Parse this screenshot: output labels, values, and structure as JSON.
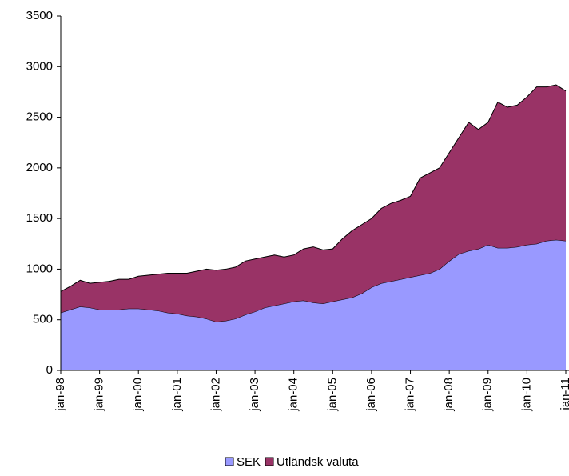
{
  "chart_data": {
    "type": "stacked_area",
    "categories": [
      "jan-98",
      null,
      null,
      null,
      "jan-99",
      null,
      null,
      null,
      "jan-00",
      null,
      null,
      null,
      "jan-01",
      null,
      null,
      null,
      "jan-02",
      null,
      null,
      null,
      "jan-03",
      null,
      null,
      null,
      "jan-04",
      null,
      null,
      null,
      "jan-05",
      null,
      null,
      null,
      "jan-06",
      null,
      null,
      null,
      "jan-07",
      null,
      null,
      null,
      "jan-08",
      null,
      null,
      null,
      "jan-09",
      null,
      null,
      null,
      "jan-10",
      null,
      null,
      null,
      "jan-11"
    ],
    "series": [
      {
        "name": "SEK",
        "color": "#9999ff",
        "values": [
          570,
          600,
          630,
          620,
          600,
          600,
          600,
          610,
          610,
          600,
          590,
          570,
          560,
          540,
          530,
          510,
          480,
          490,
          510,
          550,
          580,
          620,
          640,
          660,
          680,
          690,
          670,
          660,
          680,
          700,
          720,
          760,
          820,
          860,
          880,
          900,
          920,
          940,
          960,
          1000,
          1080,
          1150,
          1180,
          1200,
          1240,
          1210,
          1210,
          1220,
          1240,
          1250,
          1280,
          1290,
          1280
        ]
      },
      {
        "name": "Utländsk valuta",
        "color": "#993366",
        "values": [
          210,
          230,
          260,
          240,
          270,
          280,
          300,
          290,
          320,
          340,
          360,
          390,
          400,
          420,
          450,
          490,
          510,
          510,
          510,
          530,
          520,
          500,
          500,
          460,
          460,
          510,
          550,
          530,
          520,
          600,
          660,
          680,
          680,
          740,
          770,
          780,
          800,
          960,
          990,
          1000,
          1070,
          1150,
          1270,
          1180,
          1210,
          1440,
          1390,
          1400,
          1460,
          1550,
          1520,
          1530,
          1480
        ]
      }
    ],
    "ylim": [
      0,
      3500
    ],
    "yticks": [
      0,
      500,
      1000,
      1500,
      2000,
      2500,
      3000,
      3500
    ],
    "legend": "bottom"
  }
}
